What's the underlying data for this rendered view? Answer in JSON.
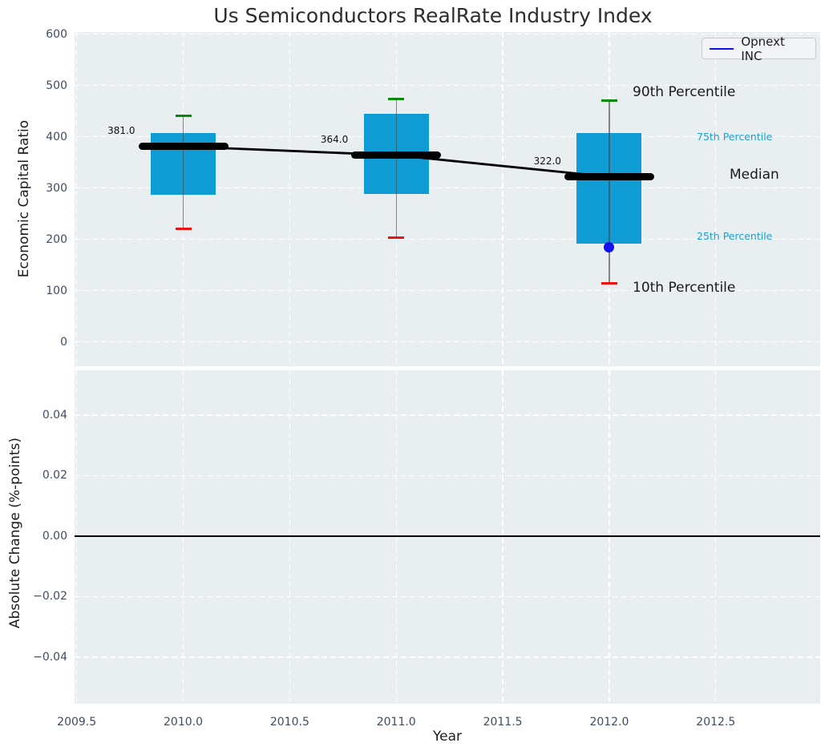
{
  "chart_data": [
    {
      "type": "box",
      "panel": "top",
      "title": "Us Semiconductors RealRate Industry Index",
      "xlabel": "Year",
      "ylabel": "Economic Capital Ratio",
      "xlim": [
        2009.5,
        2013.0
      ],
      "ylim": [
        -47,
        604
      ],
      "grid": true,
      "legend_position": "upper right",
      "legend_entries": [
        "Opnext INC"
      ],
      "xticks": [
        2009.5,
        2010.0,
        2010.5,
        2011.0,
        2011.5,
        2012.0,
        2012.5
      ],
      "xtick_labels": [
        "2009.5",
        "2010.0",
        "2010.5",
        "2011.0",
        "2011.5",
        "2012.0",
        "2012.5"
      ],
      "yticks": [
        600,
        500,
        400,
        300,
        200,
        100,
        0
      ],
      "ytick_labels": [
        "600",
        "500",
        "400",
        "300",
        "200",
        "100",
        "0"
      ],
      "boxes": [
        {
          "year": 2010,
          "p10": 220,
          "p25": 287,
          "median": 381,
          "p75": 408,
          "p90": 441,
          "median_label": "381.0"
        },
        {
          "year": 2011,
          "p10": 204,
          "p25": 288,
          "median": 364,
          "p75": 445,
          "p90": 474,
          "median_label": "364.0"
        },
        {
          "year": 2012,
          "p10": 114,
          "p25": 192,
          "median": 322,
          "p75": 407,
          "p90": 470,
          "median_label": "322.0"
        }
      ],
      "median_trend": {
        "x": [
          2010,
          2011,
          2012
        ],
        "y": [
          381,
          364,
          322
        ]
      },
      "company_series": {
        "name": "Opnext INC",
        "x": [
          2012
        ],
        "y": [
          185
        ]
      },
      "annotations": [
        {
          "id": "p90",
          "text": "90th Percentile"
        },
        {
          "id": "p75",
          "text": "75th Percentile"
        },
        {
          "id": "median",
          "text": "Median"
        },
        {
          "id": "p25",
          "text": "25th Percentile"
        },
        {
          "id": "p10",
          "text": "10th Percentile"
        }
      ],
      "colors": {
        "box_fill": "#0f9bd3",
        "p90_cap": "#0a8a0a",
        "p10_cap": "#ee1111",
        "whisker": "#464646",
        "median_line": "#000000",
        "company": "#1111ee",
        "percentile_label": "#1d9fd1",
        "plot_background": "#e9eef1",
        "gridline": "#ffffff"
      }
    },
    {
      "type": "line",
      "panel": "bottom",
      "xlabel": "Year",
      "ylabel": "Absolute Change (%-points)",
      "ylim": [
        -0.055,
        0.055
      ],
      "grid": true,
      "zero_line": true,
      "yticks": [
        0.04,
        0.02,
        0,
        -0.02,
        -0.04
      ],
      "ytick_labels": [
        "0.04",
        "0.02",
        "0.00",
        "−0.02",
        "−0.04"
      ],
      "series": []
    }
  ]
}
